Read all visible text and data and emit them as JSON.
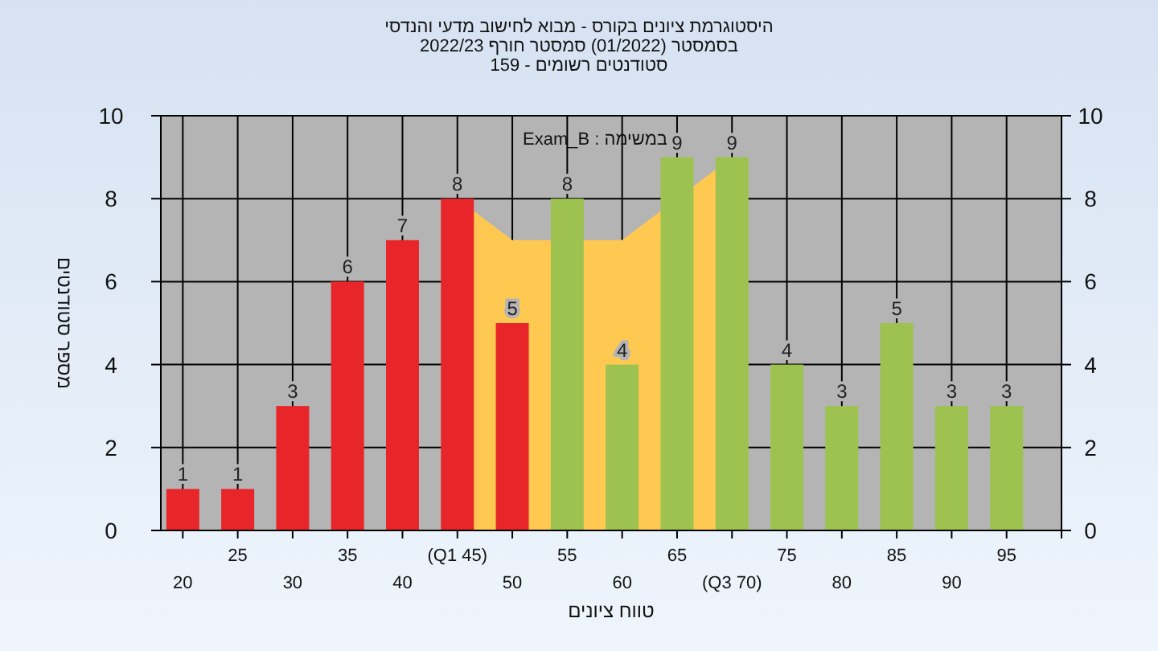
{
  "chart_data": {
    "type": "bar",
    "title": "היסטוגרמת ציונים בקורס - מבוא לחישוב מדעי והנדסי",
    "subtitle": "בסמסטר (01/2022)  סמסטר חורף 2022/23\nסטודנטים רשומים - 159",
    "xlabel": "טווח ציונים",
    "ylabel": "מספר סטודנטים",
    "annotations": [
      "במשימה : Exam_B"
    ],
    "categories": [
      "20",
      "25",
      "30",
      "35",
      "40",
      "(Q1 45)",
      "50",
      "55",
      "60",
      "65",
      "(Q3 70)",
      "75",
      "80",
      "85",
      "90",
      "95"
    ],
    "series": [
      {
        "type": "area",
        "color": "#ffc850",
        "values": [
          null,
          null,
          null,
          null,
          null,
          8,
          7,
          null,
          7,
          null,
          9,
          null,
          null,
          null,
          null,
          null
        ]
      },
      {
        "values": [
          1,
          1,
          3,
          6,
          7,
          8,
          5,
          8,
          4,
          9,
          9,
          4,
          3,
          5,
          3,
          3
        ],
        "value_labels": [
          "1",
          "1",
          "3",
          "6",
          "7",
          "8",
          "5",
          "8",
          "4",
          "9",
          "9",
          "4",
          "3",
          "5",
          "3",
          "3"
        ],
        "colors": [
          "#e8262a",
          "#e8262a",
          "#e8262a",
          "#e8262a",
          "#e8262a",
          "#e8262a",
          "#e8262a",
          "#9dc250",
          "#9dc250",
          "#9dc250",
          "#9dc250",
          "#9dc250",
          "#9dc250",
          "#9dc250",
          "#9dc250",
          "#9dc250"
        ]
      }
    ],
    "ylim": [
      0,
      10
    ],
    "yticks": [
      0,
      2,
      4,
      6,
      8,
      10
    ],
    "y2lim": [
      0,
      10
    ],
    "y2ticks": [
      0,
      2,
      4,
      6,
      8,
      10
    ],
    "grid": true
  }
}
